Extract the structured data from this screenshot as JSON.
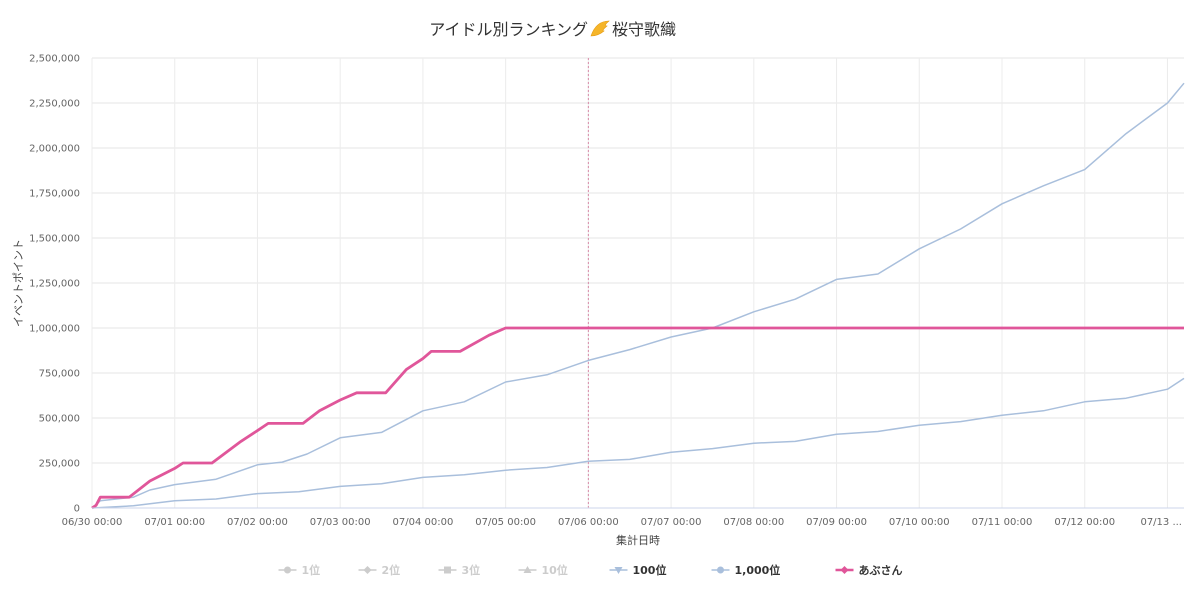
{
  "chart_data": {
    "type": "line",
    "title": "アイドル別ランキング",
    "title_suffix": "桜守歌織",
    "title_icon": "wing-icon",
    "xlabel": "集計日時",
    "ylabel": "イベントポイント",
    "ylim": [
      0,
      2500000
    ],
    "y_ticks": [
      0,
      250000,
      500000,
      750000,
      1000000,
      1250000,
      1500000,
      1750000,
      2000000,
      2250000,
      2500000
    ],
    "y_tick_labels": [
      "0",
      "250,000",
      "500,000",
      "750,000",
      "1,000,000",
      "1,250,000",
      "1,500,000",
      "1,750,000",
      "2,000,000",
      "2,250,000",
      "2,500,000"
    ],
    "x_unit": "day",
    "xlim": [
      0,
      13.2
    ],
    "x_tick_values": [
      0,
      1,
      2,
      3,
      4,
      5,
      6,
      7,
      8,
      9,
      10,
      11,
      12,
      13
    ],
    "x_tick_labels": [
      "06/30 00:00",
      "07/01 00:00",
      "07/02 00:00",
      "07/03 00:00",
      "07/04 00:00",
      "07/05 00:00",
      "07/06 00:00",
      "07/07 00:00",
      "07/08 00:00",
      "07/09 00:00",
      "07/10 00:00",
      "07/11 00:00",
      "07/12 00:00",
      "07/13 ..."
    ],
    "plot_line_x": 6,
    "grid": true,
    "legend_position": "bottom",
    "series": [
      {
        "name": "1位",
        "color": "#cccccc",
        "marker": "circle",
        "visible": false,
        "x": [],
        "y": []
      },
      {
        "name": "2位",
        "color": "#cccccc",
        "marker": "diamond",
        "visible": false,
        "x": [],
        "y": []
      },
      {
        "name": "3位",
        "color": "#cccccc",
        "marker": "square",
        "visible": false,
        "x": [],
        "y": []
      },
      {
        "name": "10位",
        "color": "#cccccc",
        "marker": "triangle",
        "visible": false,
        "x": [],
        "y": []
      },
      {
        "name": "100位",
        "color": "#a9bfdc",
        "marker": "triangle-down",
        "visible": true,
        "x": [
          0,
          0.1,
          0.5,
          0.7,
          1.0,
          1.5,
          2.0,
          2.3,
          2.6,
          3.0,
          3.5,
          4.0,
          4.5,
          5.0,
          5.5,
          6.0,
          6.5,
          7.0,
          7.5,
          8.0,
          8.5,
          9.0,
          9.5,
          10.0,
          10.5,
          11.0,
          11.5,
          12.0,
          12.5,
          13.0,
          13.2
        ],
        "y": [
          0,
          40000,
          60000,
          100000,
          130000,
          160000,
          240000,
          255000,
          300000,
          390000,
          420000,
          540000,
          590000,
          700000,
          740000,
          820000,
          880000,
          950000,
          1000000,
          1090000,
          1160000,
          1270000,
          1300000,
          1440000,
          1550000,
          1690000,
          1790000,
          1880000,
          2080000,
          2250000,
          2360000
        ]
      },
      {
        "name": "1,000位",
        "color": "#a9bfdc",
        "marker": "circle",
        "visible": true,
        "x": [
          0,
          0.5,
          1.0,
          1.5,
          2.0,
          2.5,
          3.0,
          3.5,
          4.0,
          4.5,
          5.0,
          5.5,
          6.0,
          6.5,
          7.0,
          7.5,
          8.0,
          8.5,
          9.0,
          9.5,
          10.0,
          10.5,
          11.0,
          11.5,
          12.0,
          12.5,
          13.0,
          13.2
        ],
        "y": [
          0,
          12000,
          40000,
          50000,
          80000,
          90000,
          120000,
          135000,
          170000,
          185000,
          210000,
          225000,
          260000,
          270000,
          310000,
          330000,
          360000,
          370000,
          410000,
          425000,
          460000,
          480000,
          515000,
          540000,
          590000,
          610000,
          660000,
          720000
        ]
      },
      {
        "name": "あぶさん",
        "color": "#e0569a",
        "marker": "diamond",
        "visible": true,
        "x": [
          0,
          0.05,
          0.1,
          0.45,
          0.7,
          1.0,
          1.1,
          1.45,
          1.8,
          2.0,
          2.13,
          2.55,
          2.75,
          3.0,
          3.2,
          3.55,
          3.8,
          4.0,
          4.1,
          4.45,
          4.8,
          5.0,
          13.2
        ],
        "y": [
          0,
          15000,
          60000,
          60000,
          150000,
          220000,
          250000,
          250000,
          370000,
          430000,
          470000,
          470000,
          540000,
          600000,
          640000,
          640000,
          770000,
          830000,
          870000,
          870000,
          960000,
          1000000,
          1000000
        ]
      }
    ]
  }
}
